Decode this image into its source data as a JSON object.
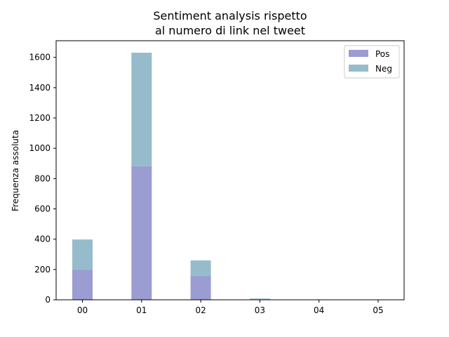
{
  "chart_data": {
    "type": "bar",
    "stacked": true,
    "title_lines": [
      "Sentiment analysis rispetto",
      "al numero di link nel tweet"
    ],
    "xlabel": "",
    "ylabel": "Frequenza assoluta",
    "categories": [
      "00",
      "01",
      "02",
      "03",
      "04",
      "05"
    ],
    "series": [
      {
        "name": "Pos",
        "color": "#9a9cd2",
        "values": [
          197,
          882,
          157,
          4,
          0,
          0
        ]
      },
      {
        "name": "Neg",
        "color": "#96bccb",
        "values": [
          201,
          749,
          103,
          4,
          0,
          0
        ]
      }
    ],
    "ylim": [
      0,
      1710
    ],
    "yticks": [
      0,
      200,
      400,
      600,
      800,
      1000,
      1200,
      1400,
      1600
    ],
    "legend_position": "top-right",
    "grid": false
  }
}
